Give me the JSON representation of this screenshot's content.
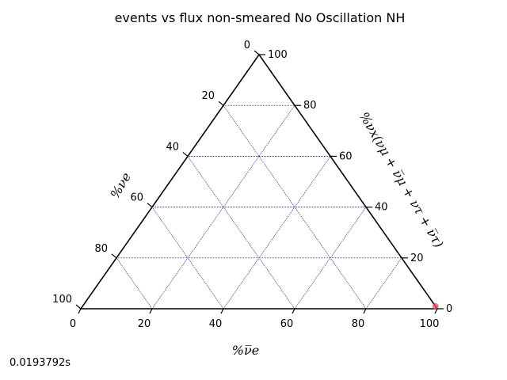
{
  "chart_data": {
    "type": "scatter",
    "title": "events vs flux non-smeared No Oscillation NH",
    "bottom_axis_label": "%ν̅e",
    "left_axis_label": "%νe",
    "right_axis_label": "%νx(νμ + ν̅μ + ντ + ν̅τ)",
    "bottom_ticks": [
      "0",
      "20",
      "40",
      "60",
      "80",
      "100"
    ],
    "left_ticks": [
      "0",
      "20",
      "40",
      "60",
      "80",
      "100"
    ],
    "right_ticks": [
      "0",
      "20",
      "40",
      "60",
      "80",
      "100"
    ],
    "grid": true,
    "grid_color": "#00008b",
    "point_color": "#e05060",
    "points": [
      {
        "nuebar": 99,
        "nue": 0,
        "nux": 1
      }
    ]
  },
  "footer": {
    "timing": "0.0193792s"
  }
}
